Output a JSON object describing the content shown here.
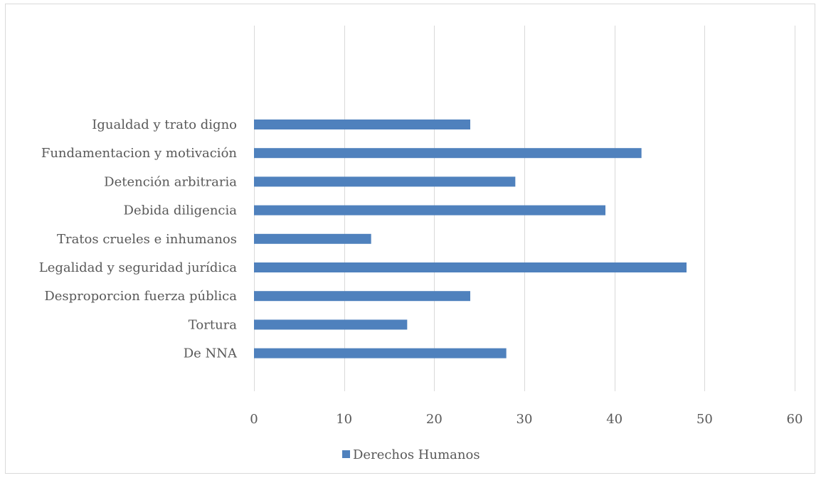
{
  "chart_data": {
    "type": "bar",
    "orientation": "horizontal",
    "categories": [
      "Igualdad y trato digno",
      "Fundamentacion y motivación",
      "Detención arbitraria",
      "Debida diligencia",
      "Tratos crueles e inhumanos",
      "Legalidad y seguridad jurídica",
      "Desproporcion fuerza pública",
      "Tortura",
      "De NNA"
    ],
    "series": [
      {
        "name": "Derechos Humanos",
        "values": [
          24,
          43,
          29,
          39,
          13,
          48,
          24,
          17,
          28
        ]
      }
    ],
    "xlim": [
      0,
      60
    ],
    "xticks": [
      0,
      10,
      20,
      30,
      40,
      50,
      60
    ],
    "grid": true,
    "legend_position": "bottom",
    "colors": {
      "bar": "#4f81bd",
      "grid": "#d9d9d9",
      "text": "#595959"
    }
  }
}
